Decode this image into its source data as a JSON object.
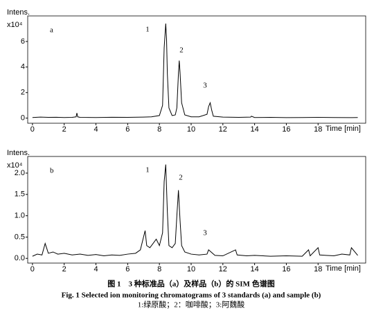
{
  "chart_data": [
    {
      "type": "line",
      "panel_label": "a",
      "y_label": "Intens.",
      "y_unit": "x10⁴",
      "x_label": "Time [min]",
      "annotations": [
        "1",
        "2",
        "3"
      ],
      "x": [
        0,
        0.5,
        1,
        1.5,
        2,
        2.5,
        2.75,
        2.8,
        2.85,
        3,
        4,
        5,
        6,
        7,
        7.5,
        8,
        8.2,
        8.3,
        8.4,
        8.45,
        8.5,
        8.6,
        8.8,
        9,
        9.1,
        9.2,
        9.25,
        9.3,
        9.4,
        9.6,
        10,
        10.5,
        11,
        11.1,
        11.2,
        11.3,
        11.4,
        12,
        13,
        13.75,
        13.8,
        14,
        15,
        16,
        17,
        18,
        19,
        20,
        20.5
      ],
      "series": [
        {
          "color": "#000000",
          "values": [
            0.05,
            0.08,
            0.06,
            0.07,
            0.05,
            0.06,
            0.1,
            0.4,
            0.1,
            0.06,
            0.05,
            0.07,
            0.06,
            0.08,
            0.1,
            0.2,
            1.0,
            5.5,
            7.4,
            6.2,
            3.5,
            0.8,
            0.2,
            0.25,
            0.8,
            3.5,
            4.5,
            3.6,
            1.2,
            0.25,
            0.1,
            0.1,
            0.3,
            0.9,
            1.2,
            0.6,
            0.15,
            0.08,
            0.06,
            0.08,
            0.15,
            0.05,
            0.06,
            0.04,
            0.05,
            0.06,
            0.05,
            0.04,
            0.05
          ]
        }
      ],
      "xlim": [
        -0.3,
        21
      ],
      "ylim": [
        -0.4,
        8
      ],
      "xticks": [
        0,
        2,
        4,
        6,
        8,
        10,
        12,
        14,
        16,
        18
      ],
      "yticks": [
        0,
        2,
        4,
        6
      ]
    },
    {
      "type": "line",
      "panel_label": "b",
      "y_label": "Intens.",
      "y_unit": "x10⁴",
      "x_label": "Time [min]",
      "annotations": [
        "1",
        "2",
        "3"
      ],
      "x": [
        0,
        0.3,
        0.6,
        0.8,
        1,
        1.3,
        1.6,
        2,
        2.5,
        3,
        3.5,
        4,
        4.5,
        5,
        5.5,
        6,
        6.5,
        6.8,
        7,
        7.1,
        7.2,
        7.4,
        7.6,
        7.8,
        8,
        8.2,
        8.3,
        8.4,
        8.5,
        8.6,
        8.8,
        9,
        9.1,
        9.2,
        9.3,
        9.4,
        9.6,
        10,
        10.5,
        11,
        11.1,
        11.5,
        12,
        12.8,
        12.9,
        13.5,
        14,
        15,
        16,
        17,
        17.4,
        17.5,
        18,
        18.1,
        18.5,
        19,
        19.5,
        20,
        20.1,
        20.5
      ],
      "series": [
        {
          "color": "#000000",
          "values": [
            0.05,
            0.1,
            0.08,
            0.35,
            0.12,
            0.15,
            0.1,
            0.12,
            0.08,
            0.1,
            0.07,
            0.09,
            0.06,
            0.08,
            0.07,
            0.1,
            0.12,
            0.2,
            0.5,
            0.65,
            0.3,
            0.25,
            0.35,
            0.45,
            0.3,
            0.6,
            1.8,
            2.2,
            1.1,
            0.3,
            0.25,
            0.35,
            1.0,
            1.6,
            0.9,
            0.3,
            0.15,
            0.1,
            0.08,
            0.1,
            0.2,
            0.07,
            0.06,
            0.2,
            0.08,
            0.06,
            0.07,
            0.05,
            0.06,
            0.05,
            0.2,
            0.06,
            0.25,
            0.08,
            0.07,
            0.06,
            0.1,
            0.08,
            0.25,
            0.07
          ]
        }
      ],
      "xlim": [
        -0.3,
        21
      ],
      "ylim": [
        -0.11,
        2.39
      ],
      "xticks": [
        0,
        2,
        4,
        6,
        8,
        10,
        12,
        14,
        16,
        18
      ],
      "yticks": [
        {
          "value": 0,
          "label": "0.0"
        },
        {
          "value": 0.5,
          "label": "0.5"
        },
        {
          "value": 1,
          "label": "1.0"
        },
        {
          "value": 1.5,
          "label": "1.5"
        },
        {
          "value": 2,
          "label": "2.0"
        }
      ]
    }
  ],
  "caption": {
    "title_cn": "图 1　3 种标准品（a）及样品（b）的 SIM 色谱图",
    "title_en": "Fig. 1 Selected ion monitoring chromatograms of 3 standards (a) and sample (b)",
    "legend_cn": "1:绿原酸；2：咖啡酸；3:阿魏酸"
  }
}
